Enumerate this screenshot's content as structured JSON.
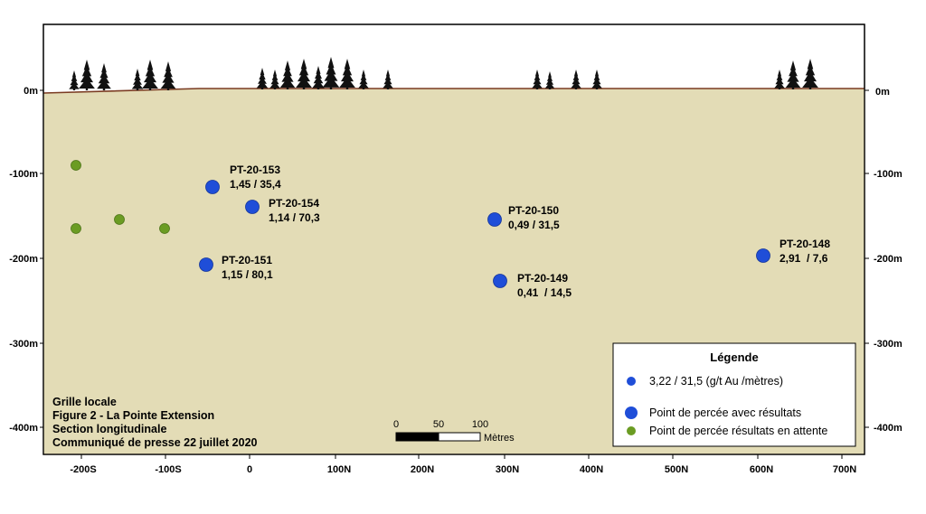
{
  "colors": {
    "ground": "#e3dcb6",
    "ground_surface": "#7a3b22",
    "result_hole": "#1f4ed8",
    "pending_hole": "#6b9c23",
    "tree": "#111111"
  },
  "y_axis": {
    "left_ticks": [
      "0m",
      "-100m",
      "-200m",
      "-300m",
      "-400m"
    ],
    "right_ticks": [
      "0m",
      "-100m",
      "-200m",
      "-300m",
      "-400m"
    ]
  },
  "x_axis": {
    "ticks": [
      "-200S",
      "-100S",
      "0",
      "100N",
      "200N",
      "300N",
      "400N",
      "500N",
      "600N",
      "700N"
    ]
  },
  "drill_holes": [
    {
      "id": "PT-20-153",
      "value": "1,45 / 35,4"
    },
    {
      "id": "PT-20-154",
      "value": "1,14 / 70,3"
    },
    {
      "id": "PT-20-151",
      "value": "1,15 / 80,1"
    },
    {
      "id": "PT-20-150",
      "value": "0,49 / 31,5"
    },
    {
      "id": "PT-20-149",
      "value": "0,41  / 14,5"
    },
    {
      "id": "PT-20-148",
      "value": "2,91  / 7,6"
    }
  ],
  "pending_holes_count": 4,
  "info_block": {
    "line1": "Grille locale",
    "line2": "Figure 2 - La Pointe Extension",
    "line3": "Section longitudinale",
    "line4": "Communiqué de presse 22 juillet 2020"
  },
  "scale_bar": {
    "labels": [
      "0",
      "50",
      "100"
    ],
    "unit": "Mètres"
  },
  "legend": {
    "title": "Légende",
    "example_label": "3,22 / 31,5 (g/t Au /mètres)",
    "result_label": "Point de percée avec résultats",
    "pending_label": "Point de percée résultats en attente"
  }
}
